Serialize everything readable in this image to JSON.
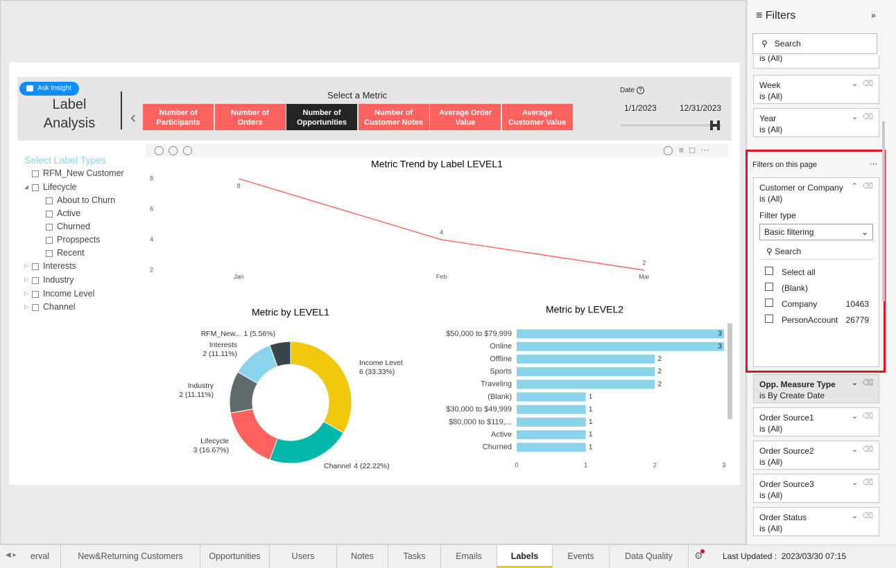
{
  "ask_insight": "Ask Insight",
  "header": {
    "title_lines": [
      "Label",
      "Analysis"
    ],
    "metric_prompt": "Select a Metric",
    "metrics": [
      {
        "lines": [
          "Number of",
          "Participants"
        ]
      },
      {
        "lines": [
          "Number of",
          "Orders"
        ]
      },
      {
        "lines": [
          "Number of",
          "Opportunities"
        ],
        "selected": true
      },
      {
        "lines": [
          "Number of",
          "Customer Notes"
        ]
      },
      {
        "lines": [
          "Average Order",
          "Value"
        ]
      },
      {
        "lines": [
          "Average",
          "Customer Value"
        ]
      }
    ],
    "date": {
      "label": "Date",
      "start": "1/1/2023",
      "end": "12/31/2023"
    }
  },
  "slicer": {
    "title": "Select Label Types",
    "items": [
      {
        "label": "RFM_New Customer",
        "level": 0
      },
      {
        "label": "Lifecycle",
        "level": 0,
        "expandable": true,
        "expanded": true
      },
      {
        "label": "About to Churn",
        "level": 1
      },
      {
        "label": "Active",
        "level": 1
      },
      {
        "label": "Churned",
        "level": 1
      },
      {
        "label": "Propspects",
        "level": 1
      },
      {
        "label": "Recent",
        "level": 1
      },
      {
        "label": "Interests",
        "level": 0,
        "expandable": true
      },
      {
        "label": "Industry",
        "level": 0,
        "expandable": true
      },
      {
        "label": "Income Level",
        "level": 0,
        "expandable": true
      },
      {
        "label": "Channel",
        "level": 0,
        "expandable": true
      }
    ]
  },
  "charts": [
    {
      "type": "line",
      "title": "Metric Trend by Label LEVEL1",
      "categories": [
        "Jan",
        "Feb",
        "Mar"
      ],
      "series": [
        {
          "name": "Metric",
          "color": "#fd625e",
          "values": [
            8,
            4,
            2
          ]
        }
      ],
      "ylim": [
        2,
        8
      ],
      "yticks": [
        2,
        4,
        6,
        8
      ],
      "grid": false
    },
    {
      "type": "donut",
      "title": "Metric by LEVEL1",
      "categories": [
        "Income Level",
        "Channel",
        "Lifecycle",
        "Industry",
        "Interests",
        "RFM_New..."
      ],
      "values": [
        6,
        4,
        3,
        2,
        2,
        1
      ],
      "value_labels": [
        "6 (33.33%)",
        "4 (22.22%)",
        "3 (16.67%)",
        "2 (11.11%)",
        "2 (11.11%)",
        "1 (5.56%)"
      ],
      "colors": [
        "#f2c80f",
        "#01b8aa",
        "#fd625e",
        "#5f6b6d",
        "#8ad4eb",
        "#374649"
      ]
    },
    {
      "type": "hbar",
      "title": "Metric by LEVEL2",
      "categories": [
        "$50,000 to $79,999",
        "Online",
        "Offline",
        "Sports",
        "Traveling",
        "(Blank)",
        "$30,000 to $49,999",
        "$80,000 to $119,...",
        "Active",
        "Churned"
      ],
      "values": [
        3,
        3,
        2,
        2,
        2,
        1,
        1,
        1,
        1,
        1
      ],
      "color": "#8ad4eb",
      "xlim": [
        0,
        3
      ],
      "xticks": [
        0,
        1,
        2,
        3
      ]
    }
  ],
  "filters": {
    "title": "Filters",
    "search": "Search",
    "clipped_state": "is (All)",
    "cards": [
      {
        "name": "Week",
        "state": "is (All)"
      },
      {
        "name": "Year",
        "state": "is (All)"
      }
    ],
    "page_section": "Filters on this page",
    "expanded": {
      "name": "Customer or Company",
      "state": "is (All)",
      "filter_type_label": "Filter type",
      "filter_type": "Basic filtering",
      "search": "Search",
      "options": [
        {
          "label": "Select all"
        },
        {
          "label": "(Blank)"
        },
        {
          "label": "Company",
          "count": 10463
        },
        {
          "label": "PersonAccount",
          "count": 26779
        }
      ]
    },
    "page_cards": [
      {
        "name": "Opp. Measure Type",
        "state": "is By Create Date"
      },
      {
        "name": "Order Source1",
        "state": "is (All)"
      },
      {
        "name": "Order Source2",
        "state": "is (All)"
      },
      {
        "name": "Order Source3",
        "state": "is (All)"
      },
      {
        "name": "Order Status",
        "state": "is (All)"
      }
    ]
  },
  "tabs": {
    "items": [
      {
        "label": "erval"
      },
      {
        "label": "New&Returning Customers"
      },
      {
        "label": "Opportunities"
      },
      {
        "label": "Users"
      },
      {
        "label": "Notes"
      },
      {
        "label": "Tasks"
      },
      {
        "label": "Emails"
      },
      {
        "label": "Labels",
        "selected": true
      },
      {
        "label": "Events"
      },
      {
        "label": "Data Quality"
      }
    ],
    "last_updated_label": "Last Updated :",
    "last_updated": "2023/03/30 07:15"
  }
}
